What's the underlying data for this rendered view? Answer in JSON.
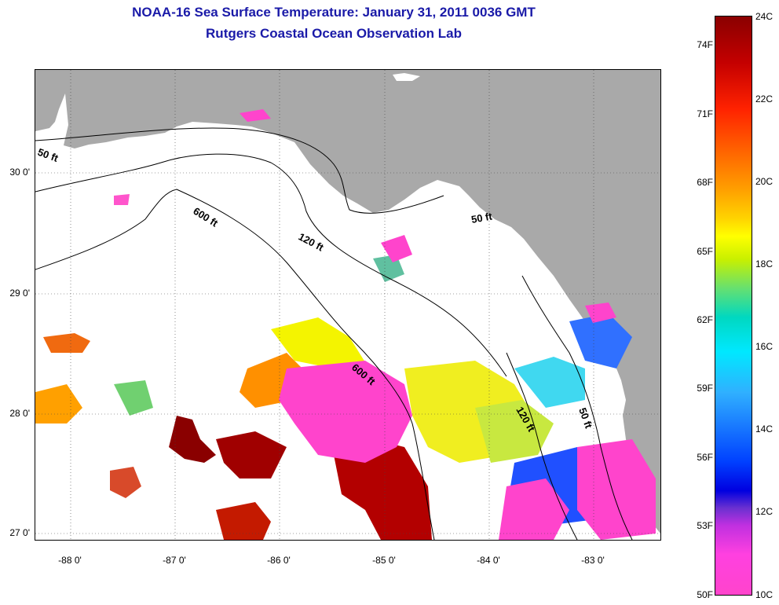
{
  "title": {
    "line1": "NOAA-16 Sea Surface Temperature:  January 31, 2011 0036 GMT",
    "line2": "Rutgers Coastal Ocean Observation Lab"
  },
  "map": {
    "latitude_labels": [
      "30 0'",
      "29 0'",
      "28 0'",
      "27 0'"
    ],
    "longitude_labels": [
      "-88 0'",
      "-87 0'",
      "-86 0'",
      "-85 0'",
      "-84 0'",
      "-83 0'"
    ],
    "contour_labels": [
      "50 ft",
      "600 ft",
      "120 ft",
      "50 ft",
      "600 ft",
      "120 ft",
      "50 ft"
    ],
    "colors": {
      "land": "#a9a9a9",
      "no_data": "#ffffff",
      "contour": "#000000"
    }
  },
  "colorbar": {
    "fahrenheit_labels": [
      "74F",
      "71F",
      "68F",
      "65F",
      "62F",
      "59F",
      "56F",
      "53F",
      "50F"
    ],
    "celsius_labels": [
      "24C",
      "22C",
      "20C",
      "18C",
      "16C",
      "14C",
      "12C",
      "10C"
    ],
    "max_color": "#8a0000",
    "min_color": "#ff44cc"
  }
}
